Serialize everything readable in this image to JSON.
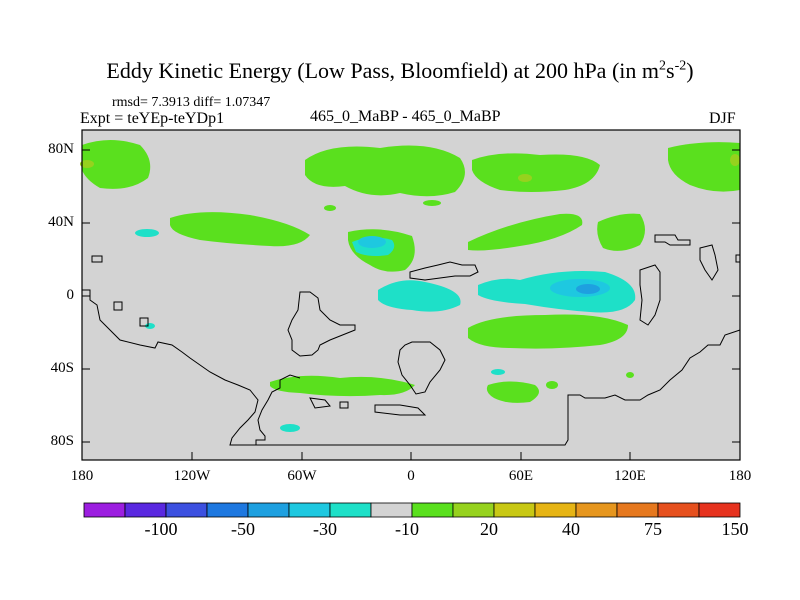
{
  "title": {
    "main": "Eddy Kinetic Energy (Low Pass, Bloomfield) at 200 hPa (in m",
    "sup1": "2",
    "mid": "s",
    "sup2": "-2",
    "end": ")"
  },
  "stats_line": "rmsd= 7.3913 diff= 1.07347",
  "experiment_label": "Expt = teYEp-teYDp1",
  "case_label": "465_0_MaBP - 465_0_MaBP",
  "season_label": "DJF",
  "map": {
    "projection": "cylindrical equidistant",
    "lon_range": [
      -180,
      180
    ],
    "lat_range": [
      -90,
      90
    ],
    "background_color": "#d3d3d3",
    "x_ticks": [
      "180",
      "120W",
      "60W",
      "0",
      "60E",
      "120E",
      "180"
    ],
    "y_ticks": [
      "80N",
      "40N",
      "0",
      "40S",
      "80S"
    ]
  },
  "colorbar": {
    "colors": [
      "#9c1ee0",
      "#5a28e0",
      "#3c50e0",
      "#1e78e0",
      "#1ea0e0",
      "#1ec8e0",
      "#1ee0c8",
      "#d3d3d3",
      "#5ae01e",
      "#96d21e",
      "#c8c814",
      "#e6b414",
      "#e6961e",
      "#e6781e",
      "#e6501e",
      "#e6321e"
    ],
    "labels": [
      "-100",
      "-50",
      "-30",
      "-10",
      "20",
      "40",
      "75",
      "150"
    ]
  },
  "field_colors": {
    "green": "#5ae01e",
    "yellowgreen": "#96d21e",
    "cyan": "#1ee0c8",
    "lightblue": "#1ec8e0",
    "blue": "#1ea0e0"
  }
}
